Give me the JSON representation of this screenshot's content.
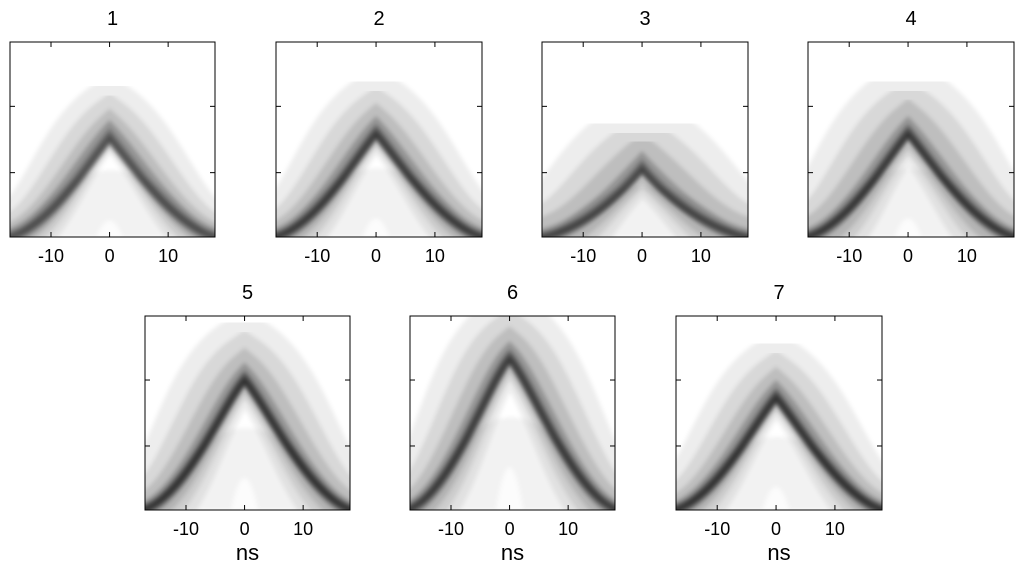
{
  "chart_data": {
    "type": "heatmap",
    "x_unit_label": "ns",
    "xlim": [
      -17,
      18
    ],
    "x_ticks": [
      -10,
      0,
      10
    ],
    "x_tick_labels": [
      "-10",
      "0",
      "10"
    ],
    "grid": false,
    "legend": "none",
    "colormap": [
      "#ffffff",
      "#000000"
    ],
    "panels": [
      {
        "title": "1",
        "peak_x": 0,
        "peak_height": 0.53,
        "arm_darkness": 0.55,
        "spread": 0.9
      },
      {
        "title": "2",
        "peak_x": 0,
        "peak_height": 0.55,
        "arm_darkness": 0.75,
        "spread": 1.0
      },
      {
        "title": "3",
        "peak_x": 0,
        "peak_height": 0.37,
        "arm_darkness": 0.65,
        "spread": 1.3
      },
      {
        "title": "4",
        "peak_x": 0,
        "peak_height": 0.55,
        "arm_darkness": 0.8,
        "spread": 1.25
      },
      {
        "title": "5",
        "peak_x": 0,
        "peak_height": 0.69,
        "arm_darkness": 0.85,
        "spread": 1.1
      },
      {
        "title": "6",
        "peak_x": 0,
        "peak_height": 0.8,
        "arm_darkness": 0.75,
        "spread": 1.1
      },
      {
        "title": "7",
        "peak_x": 0,
        "peak_height": 0.6,
        "arm_darkness": 0.85,
        "spread": 1.0
      }
    ]
  }
}
